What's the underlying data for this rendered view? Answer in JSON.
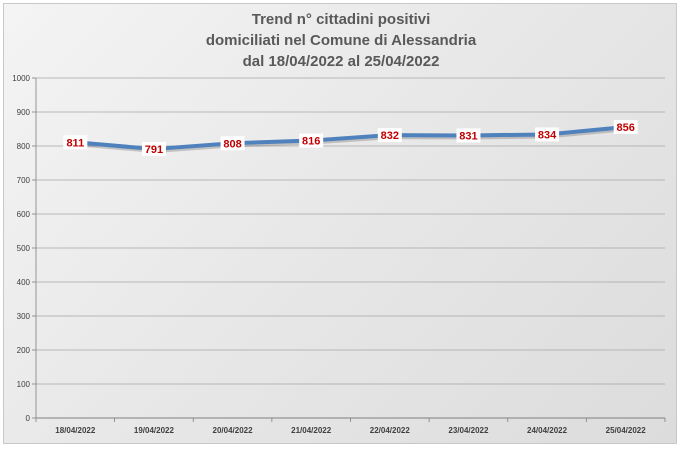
{
  "chart_data": {
    "type": "line",
    "title_lines": [
      "Trend n° cittadini positivi",
      "domiciliati nel Comune di Alessandria",
      "dal 18/04/2022 al 25/04/2022"
    ],
    "xlabel": "",
    "ylabel": "",
    "categories": [
      "18/04/2022",
      "19/04/2022",
      "20/04/2022",
      "21/04/2022",
      "22/04/2022",
      "23/04/2022",
      "24/04/2022",
      "25/04/2022"
    ],
    "values": [
      811,
      791,
      808,
      816,
      832,
      831,
      834,
      856
    ],
    "ylim": [
      0,
      1000
    ],
    "yticks": [
      0,
      100,
      200,
      300,
      400,
      500,
      600,
      700,
      800,
      900,
      1000
    ],
    "grid": true,
    "legend": "none",
    "data_labels": true,
    "colors": {
      "line": "#4f81bd",
      "data_label_text": "#c00000",
      "data_label_bg": "#ffffff",
      "grid": "#a6a6a6",
      "title": "#595959"
    }
  }
}
